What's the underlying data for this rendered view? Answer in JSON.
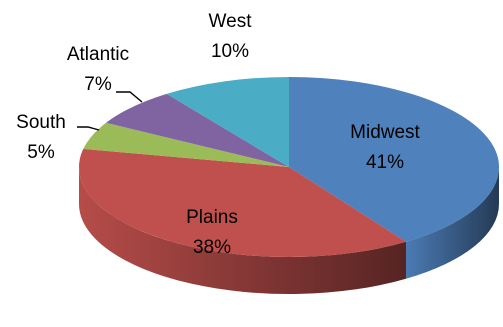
{
  "chart_data": {
    "type": "pie",
    "style": "3d",
    "title": "",
    "legend": "none",
    "slices": [
      {
        "label": "Midwest",
        "value": 41,
        "value_label": "41%",
        "color": "#4F81BD"
      },
      {
        "label": "Plains",
        "value": 38,
        "value_label": "38%",
        "color": "#C0504D"
      },
      {
        "label": "South",
        "value": 5,
        "value_label": "5%",
        "color": "#9BBB59"
      },
      {
        "label": "Atlantic",
        "value": 7,
        "value_label": "7%",
        "color": "#8064A2"
      },
      {
        "label": "West",
        "value": 10,
        "value_label": "10%",
        "color": "#4BACC6"
      }
    ]
  }
}
